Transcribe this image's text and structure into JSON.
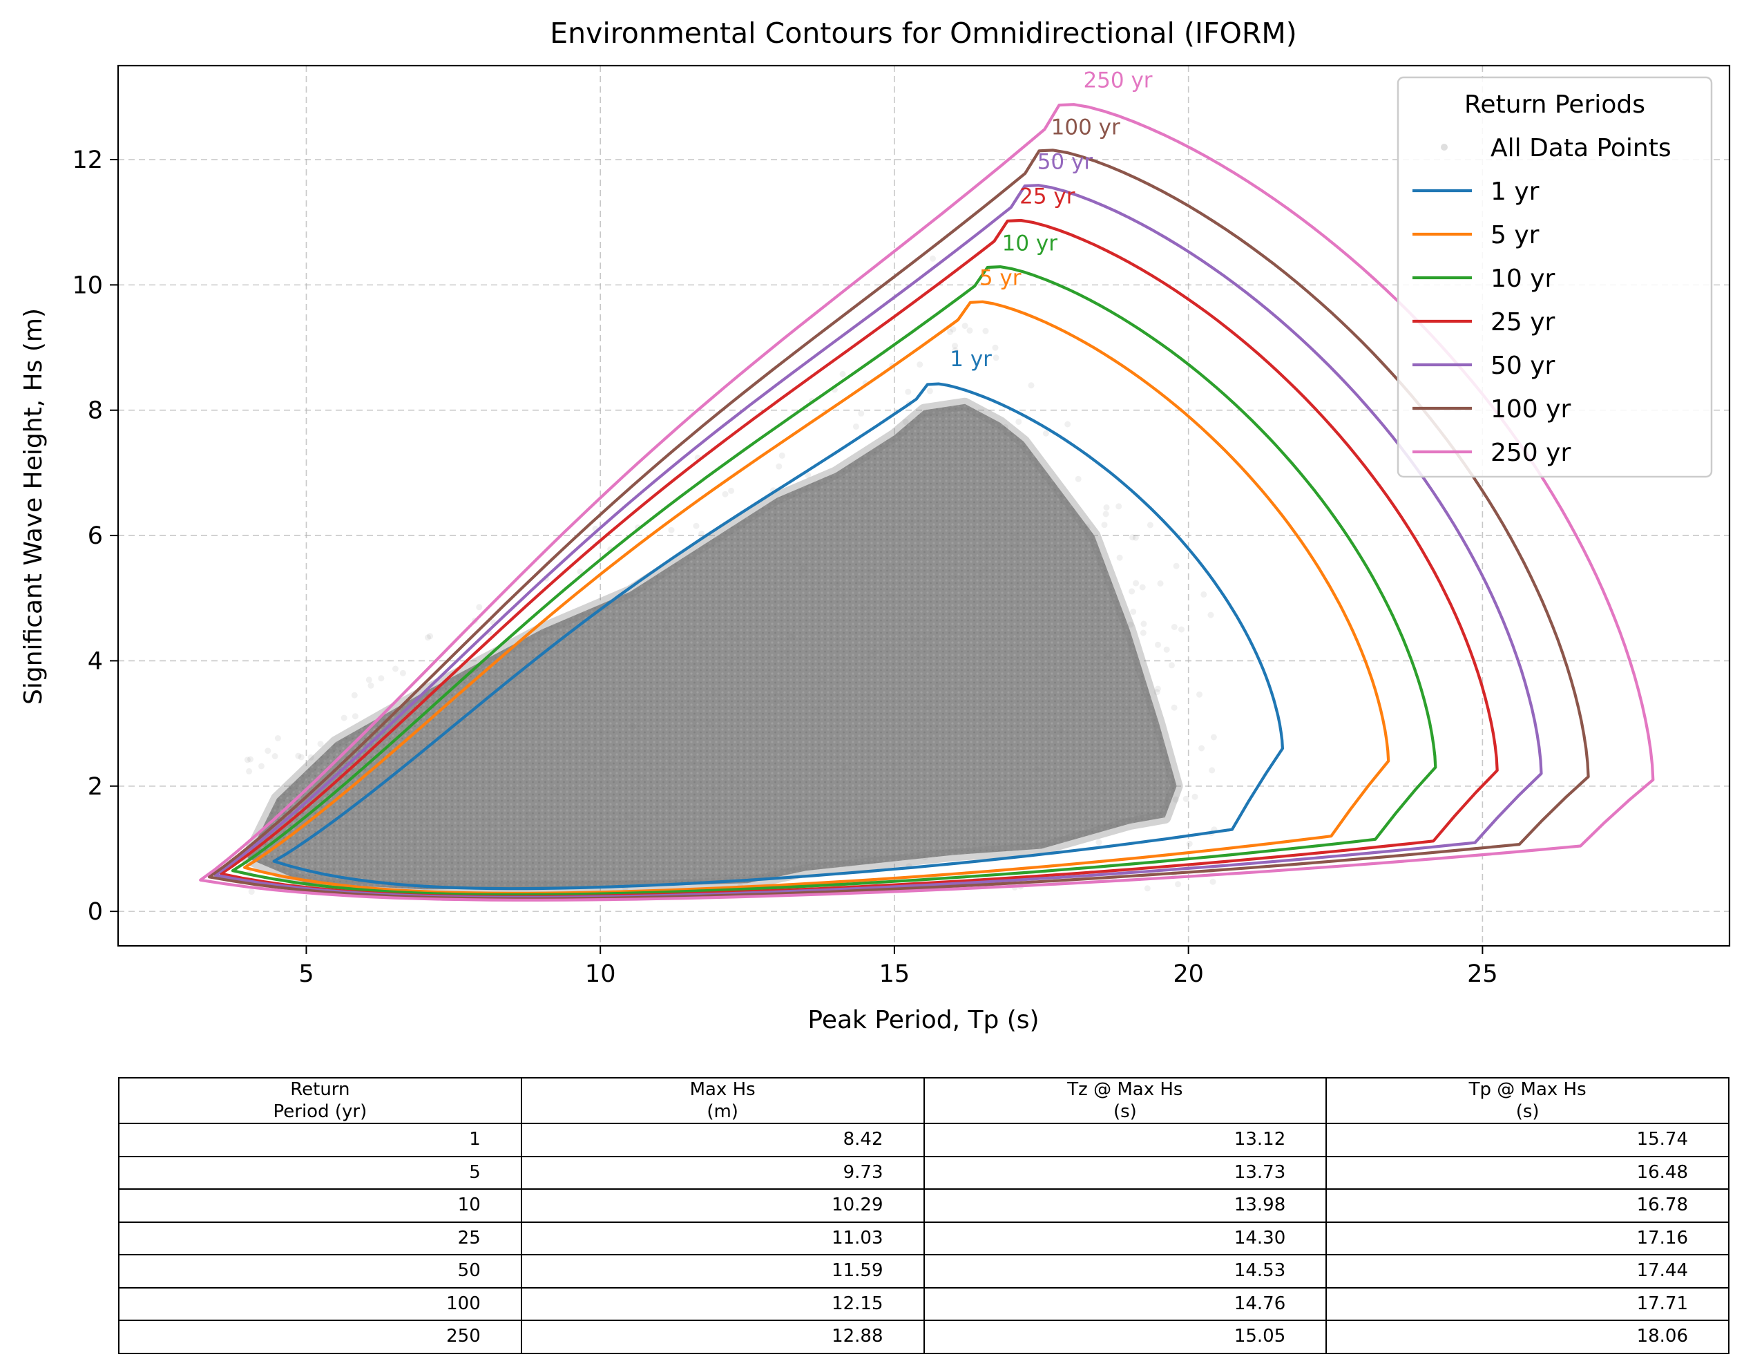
{
  "chart_data": {
    "type": "line",
    "title": "Environmental Contours for Omnidirectional (IFORM)",
    "xlabel": "Peak Period, Tp (s)",
    "ylabel": "Significant Wave Height, Hs (m)",
    "xlim": [
      1.8,
      29.2
    ],
    "ylim": [
      -0.55,
      13.5
    ],
    "xticks": [
      5,
      10,
      15,
      20,
      25
    ],
    "yticks": [
      0,
      2,
      4,
      6,
      8,
      10,
      12
    ],
    "grid": true,
    "legend": {
      "title": "Return Periods",
      "placement": "top-right",
      "scatter_label": "All Data Points"
    },
    "scatter": {
      "name": "All Data Points",
      "color": "#808080",
      "density_envelope": {
        "x": [
          4.0,
          4.5,
          5.5,
          7,
          9,
          10.5,
          12,
          13,
          14,
          15,
          15.5,
          16.2,
          16.8,
          17.2,
          17.6,
          18.4,
          19.0,
          19.5,
          19.8,
          19.6,
          19.0,
          17.5,
          16.0,
          14.5,
          13.5,
          12.5,
          10.0,
          7.0,
          5.0,
          4.0
        ],
        "y": [
          0.85,
          1.8,
          2.7,
          3.5,
          4.5,
          5.1,
          6.0,
          6.6,
          7.0,
          7.6,
          8.0,
          8.1,
          7.8,
          7.5,
          7.0,
          6.0,
          4.5,
          3.0,
          2.0,
          1.5,
          1.4,
          1.0,
          0.9,
          0.75,
          0.65,
          0.45,
          0.38,
          0.35,
          0.45,
          0.85
        ]
      }
    },
    "series": [
      {
        "name": "1 yr",
        "color": "#1f77b4",
        "label": "1 yr",
        "peak": [
          15.75,
          8.42
        ],
        "tmin": 4.45,
        "ymin_at_tmin": 0.8,
        "tmax": 21.6,
        "ymax_at_tmax": 2.6,
        "hs_low": 0.28,
        "label_at": [
          16.3,
          8.7
        ]
      },
      {
        "name": "5 yr",
        "color": "#ff7f0e",
        "label": "5 yr",
        "peak": [
          16.5,
          9.73
        ],
        "tmin": 3.95,
        "ymin_at_tmin": 0.7,
        "tmax": 23.4,
        "ymax_at_tmax": 2.4,
        "hs_low": 0.21,
        "label_at": [
          16.8,
          10.0
        ]
      },
      {
        "name": "10 yr",
        "color": "#2ca02c",
        "label": "10 yr",
        "peak": [
          16.8,
          10.29
        ],
        "tmin": 3.75,
        "ymin_at_tmin": 0.65,
        "tmax": 24.2,
        "ymax_at_tmax": 2.3,
        "hs_low": 0.19,
        "label_at": [
          17.3,
          10.55
        ]
      },
      {
        "name": "25 yr",
        "color": "#d62728",
        "label": "25 yr",
        "peak": [
          17.15,
          11.03
        ],
        "tmin": 3.55,
        "ymin_at_tmin": 0.6,
        "tmax": 25.25,
        "ymax_at_tmax": 2.25,
        "hs_low": 0.16,
        "label_at": [
          17.6,
          11.3
        ]
      },
      {
        "name": "50 yr",
        "color": "#9467bd",
        "label": "50 yr",
        "peak": [
          17.45,
          11.59
        ],
        "tmin": 3.45,
        "ymin_at_tmin": 0.58,
        "tmax": 26.0,
        "ymax_at_tmax": 2.2,
        "hs_low": 0.15,
        "label_at": [
          17.9,
          11.85
        ]
      },
      {
        "name": "100 yr",
        "color": "#8c564b",
        "label": "100 yr",
        "peak": [
          17.7,
          12.15
        ],
        "tmin": 3.35,
        "ymin_at_tmin": 0.55,
        "tmax": 26.8,
        "ymax_at_tmax": 2.15,
        "hs_low": 0.13,
        "label_at": [
          18.25,
          12.4
        ]
      },
      {
        "name": "250 yr",
        "color": "#e377c2",
        "label": "250 yr",
        "peak": [
          18.05,
          12.88
        ],
        "tmin": 3.2,
        "ymin_at_tmin": 0.5,
        "tmax": 27.9,
        "ymax_at_tmax": 2.1,
        "hs_low": 0.11,
        "label_at": [
          18.8,
          13.15
        ]
      }
    ]
  },
  "table": {
    "headers": [
      [
        "Return",
        "Period (yr)"
      ],
      [
        "Max Hs",
        "(m)"
      ],
      [
        "Tz @ Max Hs",
        "(s)"
      ],
      [
        "Tp @ Max Hs",
        "(s)"
      ]
    ],
    "rows": [
      [
        "1",
        "8.42",
        "13.12",
        "15.74"
      ],
      [
        "5",
        "9.73",
        "13.73",
        "16.48"
      ],
      [
        "10",
        "10.29",
        "13.98",
        "16.78"
      ],
      [
        "25",
        "11.03",
        "14.30",
        "17.16"
      ],
      [
        "50",
        "11.59",
        "14.53",
        "17.44"
      ],
      [
        "100",
        "12.15",
        "14.76",
        "17.71"
      ],
      [
        "250",
        "12.88",
        "15.05",
        "18.06"
      ]
    ]
  }
}
